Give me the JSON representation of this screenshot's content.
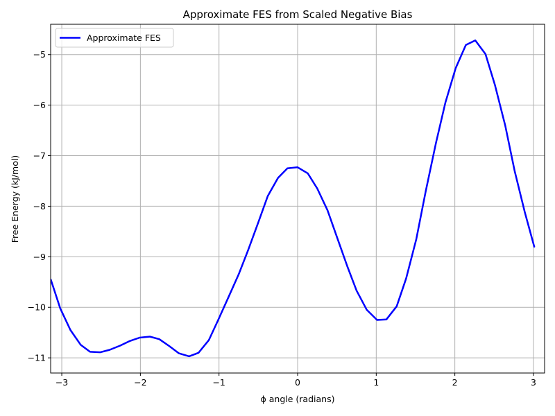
{
  "chart_data": {
    "type": "line",
    "title": "Approximate FES from Scaled Negative Bias",
    "xlabel": "ϕ angle (radians)",
    "ylabel": "Free Energy (kJ/mol)",
    "xlim": [
      -3.1416,
      3.1416
    ],
    "ylim": [
      -11.3,
      -4.4
    ],
    "xticks": [
      -3,
      -2,
      -1,
      0,
      1,
      2,
      3
    ],
    "xtick_labels": [
      "−3",
      "−2",
      "−1",
      "0",
      "1",
      "2",
      "3"
    ],
    "yticks": [
      -11,
      -10,
      -9,
      -8,
      -7,
      -6,
      -5
    ],
    "ytick_labels": [
      "−11",
      "−10",
      "−9",
      "−8",
      "−7",
      "−6",
      "−5"
    ],
    "grid": true,
    "legend_position": "top-left",
    "series": [
      {
        "name": "Approximate FES",
        "color": "#0000ff",
        "x": [
          -3.14,
          -3.02,
          -2.89,
          -2.76,
          -2.64,
          -2.51,
          -2.39,
          -2.26,
          -2.14,
          -2.01,
          -1.88,
          -1.76,
          -1.63,
          -1.51,
          -1.38,
          -1.26,
          -1.13,
          -1.01,
          -0.88,
          -0.75,
          -0.63,
          -0.5,
          -0.38,
          -0.25,
          -0.13,
          0.0,
          0.13,
          0.25,
          0.38,
          0.5,
          0.63,
          0.75,
          0.88,
          1.01,
          1.13,
          1.26,
          1.38,
          1.51,
          1.63,
          1.76,
          1.88,
          2.01,
          2.14,
          2.26,
          2.39,
          2.51,
          2.64,
          2.76,
          2.89,
          3.01
        ],
        "y": [
          -9.45,
          -10.02,
          -10.45,
          -10.74,
          -10.88,
          -10.89,
          -10.84,
          -10.76,
          -10.67,
          -10.6,
          -10.58,
          -10.63,
          -10.77,
          -10.91,
          -10.97,
          -10.9,
          -10.65,
          -10.25,
          -9.8,
          -9.35,
          -8.87,
          -8.32,
          -7.8,
          -7.44,
          -7.25,
          -7.23,
          -7.35,
          -7.65,
          -8.08,
          -8.61,
          -9.18,
          -9.67,
          -10.05,
          -10.25,
          -10.24,
          -9.98,
          -9.43,
          -8.65,
          -7.7,
          -6.75,
          -5.95,
          -5.27,
          -4.81,
          -4.72,
          -4.99,
          -5.6,
          -6.4,
          -7.3,
          -8.12,
          -8.8
        ]
      }
    ]
  }
}
